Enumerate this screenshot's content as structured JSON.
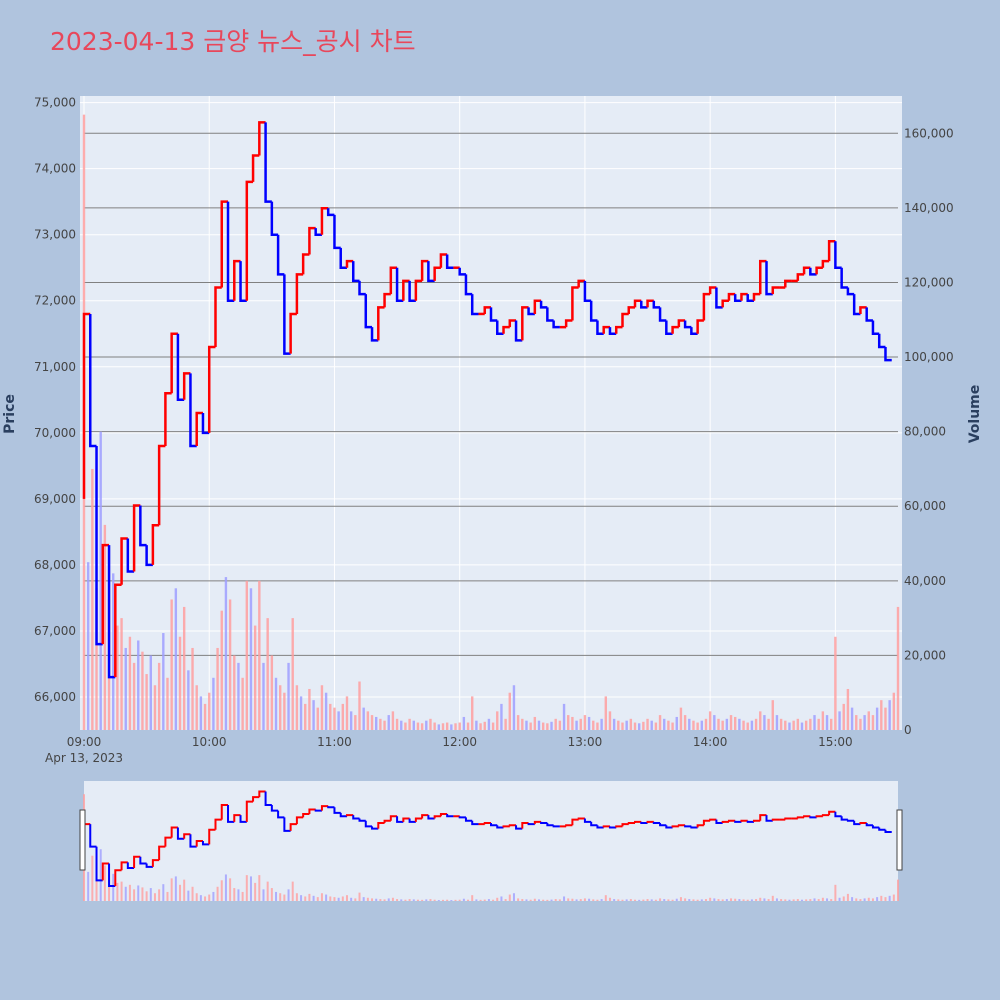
{
  "title": "2023-04-13 금양 뉴스_공시 차트",
  "colors": {
    "page_bg": "#b0c4de",
    "plot_bg": "#e5ecf6",
    "grid": "#ffffff",
    "hline": "#808080",
    "up": "#ff0000",
    "down": "#0000ff",
    "vol_up": "#ff9f9f",
    "vol_down": "#9f9fff",
    "title": "#e8475b"
  },
  "chart_data": {
    "type": "candlestick",
    "x_axis": {
      "ticks": [
        "09:00",
        "10:00",
        "11:00",
        "12:00",
        "13:00",
        "14:00",
        "15:00"
      ],
      "date_label": "Apr 13, 2023",
      "range": [
        "09:00",
        "15:30"
      ]
    },
    "price_axis": {
      "label": "Price",
      "ticks": [
        "66,000",
        "67,000",
        "68,000",
        "69,000",
        "70,000",
        "71,000",
        "72,000",
        "73,000",
        "74,000",
        "75,000"
      ],
      "range": [
        65500,
        75100
      ]
    },
    "volume_axis": {
      "label": "Volume",
      "ticks": [
        "0",
        "20,000",
        "40,000",
        "60,000",
        "80,000",
        "100,000",
        "120,000",
        "140,000",
        "160,000"
      ],
      "range": [
        0,
        170000
      ]
    },
    "price_series": {
      "name": "price",
      "points": [
        [
          "09:00",
          69000
        ],
        [
          "09:03",
          71800
        ],
        [
          "09:06",
          69800
        ],
        [
          "09:09",
          66800
        ],
        [
          "09:12",
          68300
        ],
        [
          "09:15",
          66300
        ],
        [
          "09:18",
          67700
        ],
        [
          "09:21",
          68400
        ],
        [
          "09:24",
          67900
        ],
        [
          "09:27",
          68900
        ],
        [
          "09:30",
          68300
        ],
        [
          "09:33",
          68000
        ],
        [
          "09:36",
          68600
        ],
        [
          "09:39",
          69800
        ],
        [
          "09:42",
          70600
        ],
        [
          "09:45",
          71500
        ],
        [
          "09:48",
          70500
        ],
        [
          "09:51",
          70900
        ],
        [
          "09:54",
          69800
        ],
        [
          "09:57",
          70300
        ],
        [
          "10:00",
          70000
        ],
        [
          "10:03",
          71300
        ],
        [
          "10:06",
          72200
        ],
        [
          "10:09",
          73500
        ],
        [
          "10:12",
          72000
        ],
        [
          "10:15",
          72600
        ],
        [
          "10:18",
          72000
        ],
        [
          "10:21",
          73800
        ],
        [
          "10:24",
          74200
        ],
        [
          "10:27",
          74700
        ],
        [
          "10:30",
          73500
        ],
        [
          "10:33",
          73000
        ],
        [
          "10:36",
          72400
        ],
        [
          "10:39",
          71200
        ],
        [
          "10:42",
          71800
        ],
        [
          "10:45",
          72400
        ],
        [
          "10:48",
          72700
        ],
        [
          "10:51",
          73100
        ],
        [
          "10:54",
          73000
        ],
        [
          "10:57",
          73400
        ],
        [
          "11:00",
          73300
        ],
        [
          "11:03",
          72800
        ],
        [
          "11:06",
          72500
        ],
        [
          "11:09",
          72600
        ],
        [
          "11:12",
          72300
        ],
        [
          "11:15",
          72100
        ],
        [
          "11:18",
          71600
        ],
        [
          "11:21",
          71400
        ],
        [
          "11:24",
          71900
        ],
        [
          "11:27",
          72100
        ],
        [
          "11:30",
          72500
        ],
        [
          "11:33",
          72000
        ],
        [
          "11:36",
          72300
        ],
        [
          "11:39",
          72000
        ],
        [
          "11:42",
          72300
        ],
        [
          "11:45",
          72600
        ],
        [
          "11:48",
          72300
        ],
        [
          "11:51",
          72500
        ],
        [
          "11:54",
          72700
        ],
        [
          "11:57",
          72500
        ],
        [
          "12:00",
          72500
        ],
        [
          "12:03",
          72400
        ],
        [
          "12:06",
          72100
        ],
        [
          "12:09",
          71800
        ],
        [
          "12:12",
          71800
        ],
        [
          "12:15",
          71900
        ],
        [
          "12:18",
          71700
        ],
        [
          "12:21",
          71500
        ],
        [
          "12:24",
          71600
        ],
        [
          "12:27",
          71700
        ],
        [
          "12:30",
          71400
        ],
        [
          "12:33",
          71900
        ],
        [
          "12:36",
          71800
        ],
        [
          "12:39",
          72000
        ],
        [
          "12:42",
          71900
        ],
        [
          "12:45",
          71700
        ],
        [
          "12:48",
          71600
        ],
        [
          "12:51",
          71600
        ],
        [
          "12:54",
          71700
        ],
        [
          "12:57",
          72200
        ],
        [
          "13:00",
          72300
        ],
        [
          "13:03",
          72000
        ],
        [
          "13:06",
          71700
        ],
        [
          "13:09",
          71500
        ],
        [
          "13:12",
          71600
        ],
        [
          "13:15",
          71500
        ],
        [
          "13:18",
          71600
        ],
        [
          "13:21",
          71800
        ],
        [
          "13:24",
          71900
        ],
        [
          "13:27",
          72000
        ],
        [
          "13:30",
          71900
        ],
        [
          "13:33",
          72000
        ],
        [
          "13:36",
          71900
        ],
        [
          "13:39",
          71700
        ],
        [
          "13:42",
          71500
        ],
        [
          "13:45",
          71600
        ],
        [
          "13:48",
          71700
        ],
        [
          "13:51",
          71600
        ],
        [
          "13:54",
          71500
        ],
        [
          "13:57",
          71700
        ],
        [
          "14:00",
          72100
        ],
        [
          "14:03",
          72200
        ],
        [
          "14:06",
          71900
        ],
        [
          "14:09",
          72000
        ],
        [
          "14:12",
          72100
        ],
        [
          "14:15",
          72000
        ],
        [
          "14:18",
          72100
        ],
        [
          "14:21",
          72000
        ],
        [
          "14:24",
          72100
        ],
        [
          "14:27",
          72600
        ],
        [
          "14:30",
          72100
        ],
        [
          "14:33",
          72200
        ],
        [
          "14:36",
          72200
        ],
        [
          "14:39",
          72300
        ],
        [
          "14:42",
          72300
        ],
        [
          "14:45",
          72400
        ],
        [
          "14:48",
          72500
        ],
        [
          "14:51",
          72400
        ],
        [
          "14:54",
          72500
        ],
        [
          "14:57",
          72600
        ],
        [
          "15:00",
          72900
        ],
        [
          "15:03",
          72500
        ],
        [
          "15:06",
          72200
        ],
        [
          "15:09",
          72100
        ],
        [
          "15:12",
          71800
        ],
        [
          "15:15",
          71900
        ],
        [
          "15:18",
          71700
        ],
        [
          "15:21",
          71500
        ],
        [
          "15:24",
          71300
        ],
        [
          "15:27",
          71100
        ]
      ]
    },
    "volume_series": {
      "name": "volume",
      "points": [
        [
          "09:00",
          165000
        ],
        [
          "09:02",
          45000
        ],
        [
          "09:04",
          70000
        ],
        [
          "09:06",
          38000
        ],
        [
          "09:08",
          80000
        ],
        [
          "09:10",
          55000
        ],
        [
          "09:12",
          35000
        ],
        [
          "09:14",
          42000
        ],
        [
          "09:16",
          28000
        ],
        [
          "09:18",
          30000
        ],
        [
          "09:20",
          22000
        ],
        [
          "09:22",
          25000
        ],
        [
          "09:24",
          18000
        ],
        [
          "09:26",
          24000
        ],
        [
          "09:28",
          21000
        ],
        [
          "09:30",
          15000
        ],
        [
          "09:32",
          20000
        ],
        [
          "09:34",
          12000
        ],
        [
          "09:36",
          18000
        ],
        [
          "09:38",
          26000
        ],
        [
          "09:40",
          14000
        ],
        [
          "09:42",
          35000
        ],
        [
          "09:44",
          38000
        ],
        [
          "09:46",
          25000
        ],
        [
          "09:48",
          33000
        ],
        [
          "09:50",
          16000
        ],
        [
          "09:52",
          22000
        ],
        [
          "09:54",
          12000
        ],
        [
          "09:56",
          9000
        ],
        [
          "09:58",
          7000
        ],
        [
          "10:00",
          10000
        ],
        [
          "10:02",
          14000
        ],
        [
          "10:04",
          22000
        ],
        [
          "10:06",
          32000
        ],
        [
          "10:08",
          41000
        ],
        [
          "10:10",
          35000
        ],
        [
          "10:12",
          20000
        ],
        [
          "10:14",
          18000
        ],
        [
          "10:16",
          14000
        ],
        [
          "10:18",
          40000
        ],
        [
          "10:20",
          38000
        ],
        [
          "10:22",
          28000
        ],
        [
          "10:24",
          40000
        ],
        [
          "10:26",
          18000
        ],
        [
          "10:28",
          30000
        ],
        [
          "10:30",
          20000
        ],
        [
          "10:32",
          14000
        ],
        [
          "10:34",
          12000
        ],
        [
          "10:36",
          10000
        ],
        [
          "10:38",
          18000
        ],
        [
          "10:40",
          30000
        ],
        [
          "10:42",
          12000
        ],
        [
          "10:44",
          9000
        ],
        [
          "10:46",
          7000
        ],
        [
          "10:48",
          11000
        ],
        [
          "10:50",
          8000
        ],
        [
          "10:52",
          6000
        ],
        [
          "10:54",
          12000
        ],
        [
          "10:56",
          10000
        ],
        [
          "10:58",
          7000
        ],
        [
          "11:00",
          6000
        ],
        [
          "11:02",
          5000
        ],
        [
          "11:04",
          7000
        ],
        [
          "11:06",
          9000
        ],
        [
          "11:08",
          5000
        ],
        [
          "11:10",
          4000
        ],
        [
          "11:12",
          13000
        ],
        [
          "11:14",
          6000
        ],
        [
          "11:16",
          5000
        ],
        [
          "11:18",
          4000
        ],
        [
          "11:20",
          3500
        ],
        [
          "11:22",
          3000
        ],
        [
          "11:24",
          2500
        ],
        [
          "11:26",
          4000
        ],
        [
          "11:28",
          5000
        ],
        [
          "11:30",
          3000
        ],
        [
          "11:32",
          2500
        ],
        [
          "11:34",
          2000
        ],
        [
          "11:36",
          3000
        ],
        [
          "11:38",
          2500
        ],
        [
          "11:40",
          2000
        ],
        [
          "11:42",
          1800
        ],
        [
          "11:44",
          2500
        ],
        [
          "11:46",
          3000
        ],
        [
          "11:48",
          2000
        ],
        [
          "11:50",
          1500
        ],
        [
          "11:52",
          1800
        ],
        [
          "11:54",
          2000
        ],
        [
          "11:56",
          1500
        ],
        [
          "11:58",
          1800
        ],
        [
          "12:00",
          2000
        ],
        [
          "12:02",
          3500
        ],
        [
          "12:04",
          2000
        ],
        [
          "12:06",
          9000
        ],
        [
          "12:08",
          2500
        ],
        [
          "12:10",
          1800
        ],
        [
          "12:12",
          2200
        ],
        [
          "12:14",
          3000
        ],
        [
          "12:16",
          2000
        ],
        [
          "12:18",
          5000
        ],
        [
          "12:20",
          7000
        ],
        [
          "12:22",
          3000
        ],
        [
          "12:24",
          10000
        ],
        [
          "12:26",
          12000
        ],
        [
          "12:28",
          4000
        ],
        [
          "12:30",
          3000
        ],
        [
          "12:32",
          2500
        ],
        [
          "12:34",
          2000
        ],
        [
          "12:36",
          3500
        ],
        [
          "12:38",
          2500
        ],
        [
          "12:40",
          2000
        ],
        [
          "12:42",
          1800
        ],
        [
          "12:44",
          2200
        ],
        [
          "12:46",
          3000
        ],
        [
          "12:48",
          2500
        ],
        [
          "12:50",
          7000
        ],
        [
          "12:52",
          4000
        ],
        [
          "12:54",
          3500
        ],
        [
          "12:56",
          2500
        ],
        [
          "12:58",
          3000
        ],
        [
          "13:00",
          4000
        ],
        [
          "13:02",
          3500
        ],
        [
          "13:04",
          2500
        ],
        [
          "13:06",
          2000
        ],
        [
          "13:08",
          3000
        ],
        [
          "13:10",
          9000
        ],
        [
          "13:12",
          5000
        ],
        [
          "13:14",
          3000
        ],
        [
          "13:16",
          2500
        ],
        [
          "13:18",
          2000
        ],
        [
          "13:20",
          2500
        ],
        [
          "13:22",
          3000
        ],
        [
          "13:24",
          2000
        ],
        [
          "13:26",
          1800
        ],
        [
          "13:28",
          2200
        ],
        [
          "13:30",
          3000
        ],
        [
          "13:32",
          2500
        ],
        [
          "13:34",
          2000
        ],
        [
          "13:36",
          4000
        ],
        [
          "13:38",
          3000
        ],
        [
          "13:40",
          2500
        ],
        [
          "13:42",
          2000
        ],
        [
          "13:44",
          3500
        ],
        [
          "13:46",
          6000
        ],
        [
          "13:48",
          4000
        ],
        [
          "13:50",
          3000
        ],
        [
          "13:52",
          2500
        ],
        [
          "13:54",
          2000
        ],
        [
          "13:56",
          2500
        ],
        [
          "13:58",
          3000
        ],
        [
          "14:00",
          5000
        ],
        [
          "14:02",
          4000
        ],
        [
          "14:04",
          3000
        ],
        [
          "14:06",
          2500
        ],
        [
          "14:08",
          3000
        ],
        [
          "14:10",
          4000
        ],
        [
          "14:12",
          3500
        ],
        [
          "14:14",
          3000
        ],
        [
          "14:16",
          2500
        ],
        [
          "14:18",
          2000
        ],
        [
          "14:20",
          2500
        ],
        [
          "14:22",
          3000
        ],
        [
          "14:24",
          5000
        ],
        [
          "14:26",
          4000
        ],
        [
          "14:28",
          3000
        ],
        [
          "14:30",
          8000
        ],
        [
          "14:32",
          4000
        ],
        [
          "14:34",
          3000
        ],
        [
          "14:36",
          2500
        ],
        [
          "14:38",
          2000
        ],
        [
          "14:40",
          2500
        ],
        [
          "14:42",
          3000
        ],
        [
          "14:44",
          2000
        ],
        [
          "14:46",
          2500
        ],
        [
          "14:48",
          3000
        ],
        [
          "14:50",
          4000
        ],
        [
          "14:52",
          3000
        ],
        [
          "14:54",
          5000
        ],
        [
          "14:56",
          4000
        ],
        [
          "14:58",
          3000
        ],
        [
          "15:00",
          25000
        ],
        [
          "15:02",
          5000
        ],
        [
          "15:04",
          7000
        ],
        [
          "15:06",
          11000
        ],
        [
          "15:08",
          6000
        ],
        [
          "15:10",
          4000
        ],
        [
          "15:12",
          3000
        ],
        [
          "15:14",
          4000
        ],
        [
          "15:16",
          5000
        ],
        [
          "15:18",
          4000
        ],
        [
          "15:20",
          6000
        ],
        [
          "15:22",
          8000
        ],
        [
          "15:24",
          6000
        ],
        [
          "15:26",
          8000
        ],
        [
          "15:28",
          10000
        ],
        [
          "15:30",
          33000
        ]
      ]
    },
    "grid": true,
    "legend": "none"
  }
}
